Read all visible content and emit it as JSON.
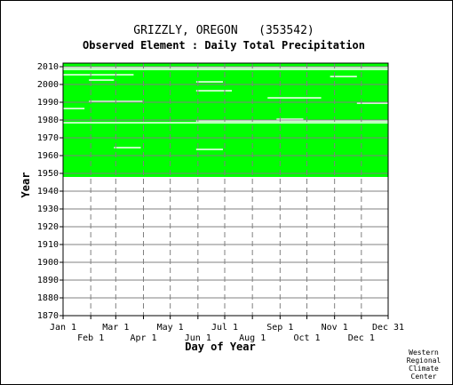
{
  "chart_data": {
    "type": "heatmap",
    "title": "GRIZZLY, OREGON   (353542)",
    "subtitle": "Observed Element : Daily Total Precipitation",
    "xlabel": "Day of Year",
    "ylabel": "Year",
    "x_ticks_upper": [
      "Jan 1",
      "Mar 1",
      "May 1",
      "Jul 1",
      "Sep 1",
      "Nov 1",
      "Dec 31"
    ],
    "x_ticks_lower": [
      "Feb 1",
      "Apr 1",
      "Jun 1",
      "Aug 1",
      "Oct 1",
      "Dec 1"
    ],
    "y_ticks": [
      "2010",
      "2000",
      "1990",
      "1980",
      "1970",
      "1960",
      "1950",
      "1940",
      "1930",
      "1920",
      "1910",
      "1900",
      "1890",
      "1880",
      "1870"
    ],
    "ylim": [
      1870,
      2012
    ],
    "xlim_day": [
      1,
      365
    ],
    "grid": true,
    "data_color": "#00ff00",
    "data_present_years": [
      1948,
      2011
    ],
    "missing_rows": [
      {
        "year": 2009,
        "day_start": 1,
        "day_end": 365
      },
      {
        "year": 2008,
        "day_start": 1,
        "day_end": 365
      },
      {
        "year": 2005,
        "day_start": 1,
        "day_end": 80
      },
      {
        "year": 2004,
        "day_start": 300,
        "day_end": 330
      },
      {
        "year": 2002,
        "day_start": 30,
        "day_end": 58
      },
      {
        "year": 2001,
        "day_start": 150,
        "day_end": 180
      },
      {
        "year": 1996,
        "day_start": 150,
        "day_end": 190
      },
      {
        "year": 1992,
        "day_start": 230,
        "day_end": 290
      },
      {
        "year": 1990,
        "day_start": 30,
        "day_end": 90
      },
      {
        "year": 1989,
        "day_start": 330,
        "day_end": 365
      },
      {
        "year": 1986,
        "day_start": 1,
        "day_end": 25
      },
      {
        "year": 1980,
        "day_start": 240,
        "day_end": 270
      },
      {
        "year": 1979,
        "day_start": 150,
        "day_end": 365
      },
      {
        "year": 1978,
        "day_start": 1,
        "day_end": 365
      },
      {
        "year": 1964,
        "day_start": 58,
        "day_end": 88
      },
      {
        "year": 1963,
        "day_start": 150,
        "day_end": 180
      }
    ]
  },
  "credit": [
    "Western",
    "Regional",
    "Climate",
    "Center"
  ]
}
